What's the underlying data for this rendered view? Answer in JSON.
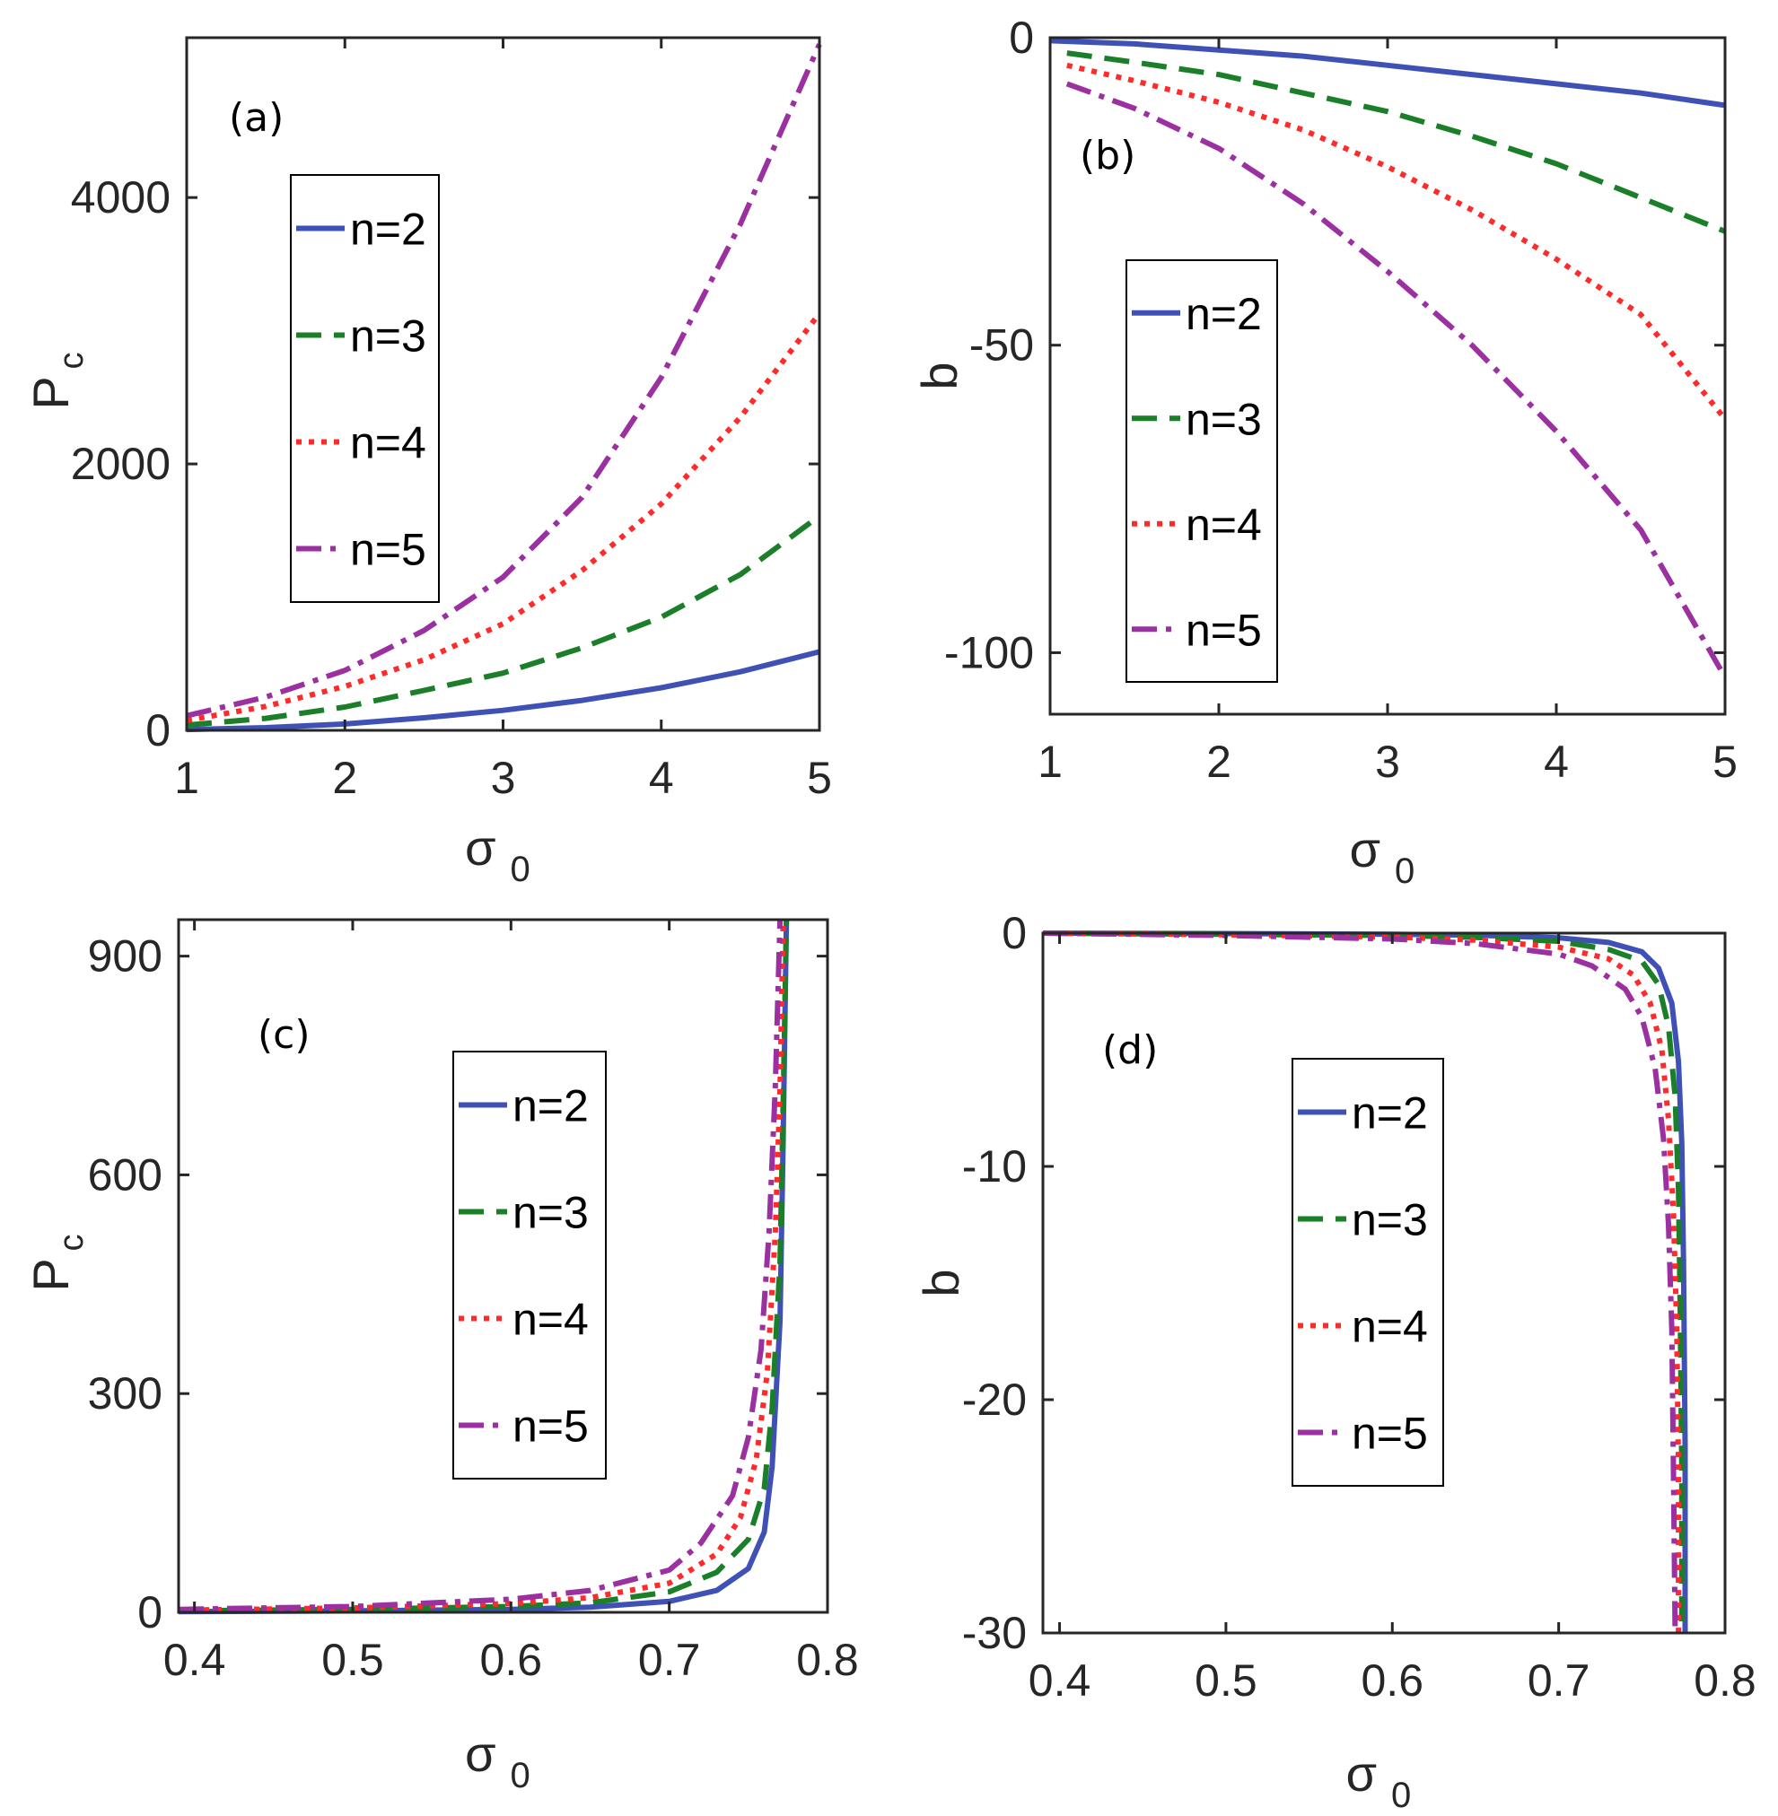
{
  "colors": {
    "n2": "#3f51b5",
    "n3": "#1b7f2a",
    "n4": "#ff2a2a",
    "n5": "#9b30a0",
    "axis": "#262626"
  },
  "chart_data": [
    {
      "type": "line",
      "panel": "(a)",
      "xlabel_main": "σ",
      "xlabel_sub": "0",
      "ylabel_main": "P",
      "ylabel_sub": "c",
      "xlim": [
        1,
        5
      ],
      "ylim": [
        0,
        5200
      ],
      "xticks": [
        1,
        2,
        3,
        4,
        5
      ],
      "yticks": [
        0,
        2000,
        4000
      ],
      "legend": [
        "n=2",
        "n=3",
        "n=4",
        "n=5"
      ],
      "series": [
        {
          "name": "n=2",
          "style": "solid",
          "x": [
            1,
            1.5,
            2,
            2.5,
            3,
            3.5,
            4,
            4.5,
            5
          ],
          "values": [
            6,
            20,
            48,
            94,
            150,
            225,
            320,
            440,
            590
          ]
        },
        {
          "name": "n=3",
          "style": "dashed",
          "x": [
            1,
            1.5,
            2,
            2.5,
            3,
            3.5,
            4,
            4.5,
            5
          ],
          "values": [
            40,
            90,
            175,
            300,
            430,
            620,
            850,
            1170,
            1610
          ]
        },
        {
          "name": "n=4",
          "style": "dotted",
          "x": [
            1,
            1.5,
            2,
            2.5,
            3,
            3.5,
            4,
            4.5,
            5
          ],
          "values": [
            75,
            180,
            330,
            530,
            800,
            1200,
            1700,
            2350,
            3130
          ]
        },
        {
          "name": "n=5",
          "style": "dashdot",
          "x": [
            1,
            1.5,
            2,
            2.5,
            3,
            3.5,
            4,
            4.5,
            5
          ],
          "values": [
            110,
            250,
            450,
            750,
            1150,
            1750,
            2650,
            3800,
            5150
          ]
        }
      ]
    },
    {
      "type": "line",
      "panel": "(b)",
      "xlabel_main": "σ",
      "xlabel_sub": "0",
      "ylabel_main": "b",
      "ylabel_sub": "",
      "xlim": [
        1,
        5
      ],
      "ylim": [
        -110,
        0
      ],
      "xticks": [
        1,
        2,
        3,
        4,
        5
      ],
      "yticks": [
        0,
        -50,
        -100
      ],
      "legend": [
        "n=2",
        "n=3",
        "n=4",
        "n=5"
      ],
      "series": [
        {
          "name": "n=2",
          "style": "solid",
          "x": [
            1,
            1.5,
            2,
            2.5,
            3,
            3.5,
            4,
            4.5,
            5
          ],
          "values": [
            -0.5,
            -1,
            -2,
            -3,
            -4.5,
            -6,
            -7.5,
            -9,
            -11
          ]
        },
        {
          "name": "n=3",
          "style": "dashed",
          "x": [
            1.1,
            1.5,
            2,
            2.5,
            3,
            3.5,
            4,
            4.5,
            5
          ],
          "values": [
            -2.5,
            -4,
            -6,
            -9,
            -12,
            -16,
            -20.5,
            -26,
            -31.5
          ]
        },
        {
          "name": "n=4",
          "style": "dotted",
          "x": [
            1.1,
            1.5,
            2,
            2.5,
            3,
            3.5,
            4,
            4.5,
            5
          ],
          "values": [
            -4.5,
            -7,
            -10.5,
            -15,
            -21,
            -28,
            -36,
            -45,
            -62
          ]
        },
        {
          "name": "n=5",
          "style": "dashdot",
          "x": [
            1.1,
            1.5,
            2,
            2.5,
            3,
            3.5,
            4,
            4.5,
            5
          ],
          "values": [
            -7.5,
            -11.5,
            -18,
            -27,
            -38,
            -50,
            -64,
            -80,
            -104
          ]
        }
      ]
    },
    {
      "type": "line",
      "panel": "(c)",
      "xlabel_main": "σ",
      "xlabel_sub": "0",
      "ylabel_main": "P",
      "ylabel_sub": "c",
      "xlim": [
        0.39,
        0.8
      ],
      "ylim": [
        0,
        950
      ],
      "xticks": [
        0.4,
        0.5,
        0.6,
        0.7,
        0.8
      ],
      "yticks": [
        0,
        300,
        600,
        900
      ],
      "legend": [
        "n=2",
        "n=3",
        "n=4",
        "n=5"
      ],
      "series": [
        {
          "name": "n=2",
          "style": "solid",
          "x": [
            0.39,
            0.5,
            0.6,
            0.65,
            0.7,
            0.73,
            0.75,
            0.76,
            0.765,
            0.77,
            0.772,
            0.774
          ],
          "values": [
            1,
            2,
            4,
            7,
            15,
            30,
            60,
            110,
            200,
            400,
            650,
            950
          ]
        },
        {
          "name": "n=3",
          "style": "dashed",
          "x": [
            0.39,
            0.5,
            0.6,
            0.65,
            0.7,
            0.73,
            0.75,
            0.76,
            0.765,
            0.77,
            0.772,
            0.774
          ],
          "values": [
            2,
            4,
            8,
            13,
            28,
            55,
            100,
            170,
            280,
            480,
            700,
            950
          ]
        },
        {
          "name": "n=4",
          "style": "dotted",
          "x": [
            0.39,
            0.5,
            0.6,
            0.65,
            0.7,
            0.73,
            0.745,
            0.755,
            0.762,
            0.767,
            0.77,
            0.772
          ],
          "values": [
            3,
            6,
            12,
            20,
            40,
            80,
            130,
            210,
            330,
            520,
            720,
            950
          ]
        },
        {
          "name": "n=5",
          "style": "dashdot",
          "x": [
            0.39,
            0.5,
            0.6,
            0.65,
            0.7,
            0.72,
            0.74,
            0.75,
            0.758,
            0.763,
            0.767,
            0.77
          ],
          "values": [
            4,
            8,
            18,
            30,
            58,
            95,
            160,
            240,
            360,
            520,
            720,
            950
          ]
        }
      ]
    },
    {
      "type": "line",
      "panel": "(d)",
      "xlabel_main": "σ",
      "xlabel_sub": "0",
      "ylabel_main": "b",
      "ylabel_sub": "",
      "xlim": [
        0.39,
        0.8
      ],
      "ylim": [
        -30,
        0
      ],
      "xticks": [
        0.4,
        0.5,
        0.6,
        0.7,
        0.8
      ],
      "yticks": [
        0,
        -10,
        -20,
        -30
      ],
      "legend": [
        "n=2",
        "n=3",
        "n=4",
        "n=5"
      ],
      "series": [
        {
          "name": "n=2",
          "style": "solid",
          "x": [
            0.39,
            0.5,
            0.6,
            0.65,
            0.7,
            0.73,
            0.75,
            0.76,
            0.768,
            0.772,
            0.774,
            0.775,
            0.776,
            0.776
          ],
          "values": [
            0,
            -0.02,
            -0.05,
            -0.09,
            -0.2,
            -0.4,
            -0.8,
            -1.5,
            -3,
            -5.5,
            -9,
            -14,
            -22,
            -30
          ]
        },
        {
          "name": "n=3",
          "style": "dashed",
          "x": [
            0.39,
            0.5,
            0.6,
            0.65,
            0.7,
            0.73,
            0.75,
            0.76,
            0.766,
            0.77,
            0.772,
            0.773,
            0.774,
            0.774
          ],
          "values": [
            0,
            -0.05,
            -0.1,
            -0.18,
            -0.35,
            -0.7,
            -1.2,
            -2.2,
            -4,
            -7,
            -11,
            -16,
            -23,
            -30
          ]
        },
        {
          "name": "n=4",
          "style": "dotted",
          "x": [
            0.39,
            0.5,
            0.6,
            0.65,
            0.7,
            0.73,
            0.745,
            0.755,
            0.762,
            0.766,
            0.769,
            0.771,
            0.772,
            0.772
          ],
          "values": [
            0,
            -0.07,
            -0.17,
            -0.3,
            -0.6,
            -1.1,
            -1.8,
            -3,
            -5,
            -8,
            -12,
            -17,
            -23,
            -30
          ]
        },
        {
          "name": "n=5",
          "style": "dashdot",
          "x": [
            0.39,
            0.5,
            0.6,
            0.65,
            0.7,
            0.72,
            0.74,
            0.75,
            0.758,
            0.763,
            0.766,
            0.768,
            0.769,
            0.77
          ],
          "values": [
            0,
            -0.1,
            -0.25,
            -0.45,
            -0.9,
            -1.4,
            -2.4,
            -3.6,
            -5.8,
            -8.8,
            -12.5,
            -17,
            -23,
            -30
          ]
        }
      ]
    }
  ]
}
